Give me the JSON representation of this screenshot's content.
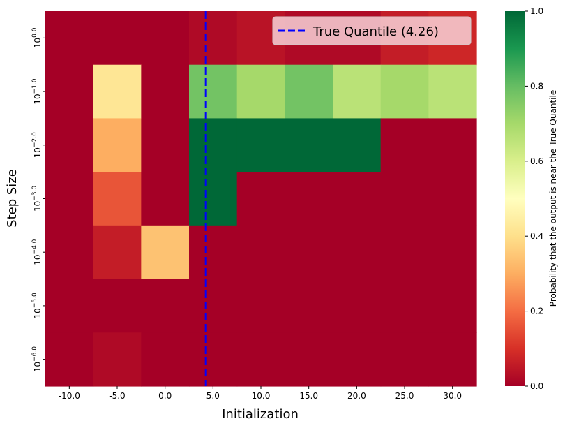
{
  "chart_data": {
    "type": "heatmap",
    "xlabel": "Initialization",
    "ylabel": "Step Size",
    "x_categories": [
      "-10.0",
      "-5.0",
      "0.0",
      "5.0",
      "10.0",
      "15.0",
      "20.0",
      "25.0",
      "30.0"
    ],
    "x_values": [
      -10,
      -5,
      0,
      5,
      10,
      15,
      20,
      25,
      30
    ],
    "y_categories": [
      {
        "base": "10",
        "exp": "0.0"
      },
      {
        "base": "10",
        "exp": "−1.0"
      },
      {
        "base": "10",
        "exp": "−2.0"
      },
      {
        "base": "10",
        "exp": "−3.0"
      },
      {
        "base": "10",
        "exp": "−4.0"
      },
      {
        "base": "10",
        "exp": "−5.0"
      },
      {
        "base": "10",
        "exp": "−6.0"
      }
    ],
    "y_values": [
      1,
      0.1,
      0.01,
      0.001,
      0.0001,
      1e-05,
      1e-06
    ],
    "values": [
      [
        0.0,
        0.0,
        0.0,
        0.02,
        0.04,
        0.02,
        0.02,
        0.06,
        0.08
      ],
      [
        0.0,
        0.42,
        0.0,
        0.78,
        0.7,
        0.78,
        0.66,
        0.7,
        0.66
      ],
      [
        0.0,
        0.3,
        0.0,
        1.0,
        1.0,
        1.0,
        1.0,
        0.0,
        0.0
      ],
      [
        0.0,
        0.16,
        0.0,
        1.0,
        0.0,
        0.0,
        0.0,
        0.0,
        0.0
      ],
      [
        0.0,
        0.06,
        0.34,
        0.0,
        0.0,
        0.0,
        0.0,
        0.0,
        0.0
      ],
      [
        0.0,
        0.0,
        0.0,
        0.0,
        0.0,
        0.0,
        0.0,
        0.0,
        0.0
      ],
      [
        0.0,
        0.02,
        0.0,
        0.0,
        0.0,
        0.0,
        0.0,
        0.0,
        0.0
      ]
    ],
    "colormap": "RdYlGn",
    "colorbar": {
      "label": "Probability that the output is near the True Quantile",
      "range": [
        0,
        1
      ],
      "ticks": [
        "0.0",
        "0.2",
        "0.4",
        "0.6",
        "0.8",
        "1.0"
      ]
    },
    "vline": {
      "x": 4.26,
      "label": "True Quantile (4.26)",
      "color": "#0000ff",
      "style": "dashed"
    },
    "legend_position": "top-right",
    "grid": false
  }
}
